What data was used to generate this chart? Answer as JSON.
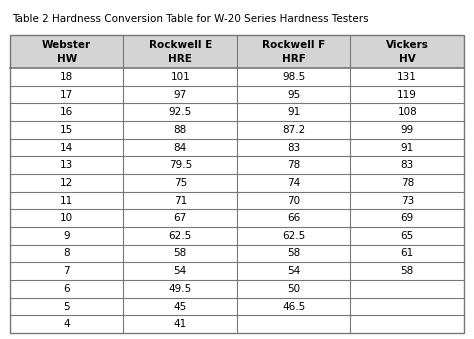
{
  "title": "Table 2 Hardness Conversion Table for W-20 Series Hardness Testers",
  "col_headers": [
    [
      "Webster",
      "HW"
    ],
    [
      "Rockwell E",
      "HRE"
    ],
    [
      "Rockwell F",
      "HRF"
    ],
    [
      "Vickers",
      "HV"
    ]
  ],
  "rows": [
    [
      "18",
      "101",
      "98.5",
      "131"
    ],
    [
      "17",
      "97",
      "95",
      "119"
    ],
    [
      "16",
      "92.5",
      "91",
      "108"
    ],
    [
      "15",
      "88",
      "87.2",
      "99"
    ],
    [
      "14",
      "84",
      "83",
      "91"
    ],
    [
      "13",
      "79.5",
      "78",
      "83"
    ],
    [
      "12",
      "75",
      "74",
      "78"
    ],
    [
      "11",
      "71",
      "70",
      "73"
    ],
    [
      "10",
      "67",
      "66",
      "69"
    ],
    [
      "9",
      "62.5",
      "62.5",
      "65"
    ],
    [
      "8",
      "58",
      "58",
      "61"
    ],
    [
      "7",
      "54",
      "54",
      "58"
    ],
    [
      "6",
      "49.5",
      "50",
      ""
    ],
    [
      "5",
      "45",
      "46.5",
      ""
    ],
    [
      "4",
      "41",
      "",
      ""
    ]
  ],
  "bg_color": "#ffffff",
  "header_bg": "#d4d4d4",
  "grid_color": "#777777",
  "text_color": "#000000",
  "title_fontsize": 7.5,
  "header_fontsize": 7.5,
  "cell_fontsize": 7.5,
  "fig_width": 4.74,
  "fig_height": 3.39,
  "dpi": 100
}
